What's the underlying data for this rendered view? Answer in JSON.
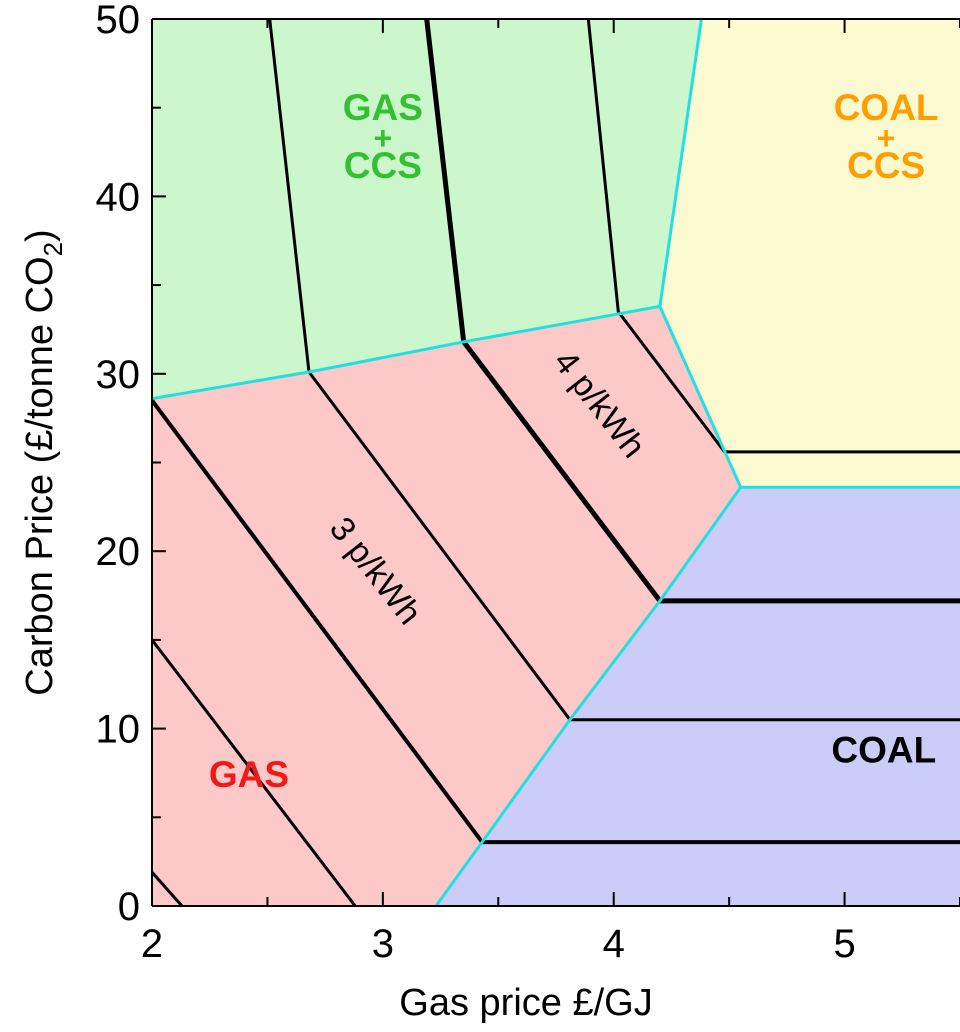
{
  "chart_data": {
    "type": "area",
    "xlabel": "Gas price £/GJ",
    "ylabel_main": "Carbon Price (£/tonne CO",
    "ylabel_sub": "2",
    "ylabel_close": ")",
    "xlim": [
      2,
      5.5
    ],
    "ylim": [
      0,
      50
    ],
    "x_ticks": [
      2,
      3,
      4,
      5
    ],
    "y_ticks": [
      0,
      10,
      20,
      30,
      40,
      50
    ],
    "colors": {
      "gas": "#fcc8c8",
      "gas_ccs": "#ccf6cc",
      "coal": "#ccccf8",
      "coal_ccs": "#fcfad0",
      "boundary": "#22e0e0",
      "contour": "#000000",
      "gas_label": "#f01818",
      "gas_ccs_label": "#33c133",
      "coal_label": "#000000",
      "coal_ccs_label": "#ff9e00"
    },
    "regions": [
      {
        "id": "gas",
        "label": "GAS",
        "points": [
          [
            2,
            0
          ],
          [
            3.23,
            0
          ],
          [
            3.43,
            3.6
          ],
          [
            3.81,
            10.5
          ],
          [
            4.2,
            17.2
          ],
          [
            4.55,
            23.6
          ],
          [
            4.2,
            33.8
          ],
          [
            3.35,
            31.8
          ],
          [
            2.68,
            30.1
          ],
          [
            2,
            28.6
          ]
        ]
      },
      {
        "id": "gas_ccs",
        "label_lines": [
          "GAS",
          "+",
          "CCS"
        ],
        "points": [
          [
            2,
            28.6
          ],
          [
            2.68,
            30.1
          ],
          [
            3.35,
            31.8
          ],
          [
            4.2,
            33.8
          ],
          [
            4.38,
            50
          ],
          [
            2,
            50
          ]
        ]
      },
      {
        "id": "coal",
        "label": "COAL",
        "points": [
          [
            3.23,
            0
          ],
          [
            5.5,
            0
          ],
          [
            5.5,
            23.6
          ],
          [
            4.55,
            23.6
          ],
          [
            4.2,
            17.2
          ],
          [
            3.81,
            10.5
          ],
          [
            3.43,
            3.6
          ]
        ]
      },
      {
        "id": "coal_ccs",
        "label_lines": [
          "COAL",
          "+",
          "CCS"
        ],
        "points": [
          [
            4.2,
            33.8
          ],
          [
            4.55,
            23.6
          ],
          [
            5.5,
            23.6
          ],
          [
            5.5,
            50
          ],
          [
            4.38,
            50
          ]
        ]
      }
    ],
    "boundaries": [
      [
        [
          2,
          28.6
        ],
        [
          2.68,
          30.1
        ],
        [
          3.35,
          31.8
        ],
        [
          4.2,
          33.8
        ]
      ],
      [
        [
          3.23,
          0
        ],
        [
          3.43,
          3.6
        ],
        [
          3.81,
          10.5
        ],
        [
          4.2,
          17.2
        ],
        [
          4.55,
          23.6
        ],
        [
          5.5,
          23.6
        ]
      ],
      [
        [
          4.2,
          33.8
        ],
        [
          4.55,
          23.6
        ]
      ],
      [
        [
          4.2,
          33.8
        ],
        [
          4.38,
          50
        ]
      ]
    ],
    "contours": [
      {
        "width": 3,
        "points": [
          [
            2,
            1.9
          ],
          [
            2.13,
            0
          ]
        ]
      },
      {
        "width": 3,
        "points": [
          [
            2,
            15
          ],
          [
            2.88,
            0
          ]
        ]
      },
      {
        "width": 4,
        "points": [
          [
            2,
            28.5
          ],
          [
            3.43,
            3.6
          ],
          [
            5.5,
            3.6
          ]
        ]
      },
      {
        "width": 3,
        "points": [
          [
            2.51,
            50
          ],
          [
            2.68,
            30.1
          ],
          [
            3.81,
            10.5
          ],
          [
            5.5,
            10.5
          ]
        ]
      },
      {
        "width": 5,
        "points": [
          [
            3.19,
            50
          ],
          [
            3.35,
            31.8
          ],
          [
            4.2,
            17.2
          ],
          [
            5.5,
            17.2
          ]
        ]
      },
      {
        "width": 3,
        "points": [
          [
            3.89,
            50
          ],
          [
            4.02,
            33.5
          ],
          [
            4.48,
            25.6
          ],
          [
            5.5,
            25.6
          ]
        ]
      }
    ],
    "labels": {
      "gas": "GAS",
      "gas_ccs": [
        "GAS",
        "+",
        "CCS"
      ],
      "coal": "COAL",
      "coal_ccs": [
        "COAL",
        "+",
        "CCS"
      ],
      "contour_3": "3 p/kWh",
      "contour_4": "4 p/kWh"
    },
    "label_positions": {
      "gas": [
        2.42,
        6.7
      ],
      "gas_ccs": [
        3.0,
        44.3
      ],
      "coal": [
        5.17,
        8.1
      ],
      "coal_ccs": [
        5.18,
        44.3
      ],
      "contour_3": [
        2.93,
        18.5
      ],
      "contour_4": [
        3.9,
        27.9
      ]
    }
  }
}
